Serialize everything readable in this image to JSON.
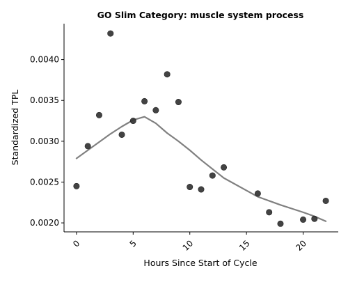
{
  "chart_data": {
    "type": "scatter",
    "title": "GO Slim Category: muscle system process",
    "xlabel": "Hours Since Start of Cycle",
    "ylabel": "Standardized TPL",
    "xlim": [
      -1.1,
      23.1
    ],
    "ylim": [
      0.00189,
      0.00444
    ],
    "x_ticks": [
      0,
      5,
      10,
      15,
      20
    ],
    "x_tick_labels": [
      "0",
      "5",
      "10",
      "15",
      "20"
    ],
    "x_tick_rotation_deg": 45,
    "y_ticks": [
      0.002,
      0.0025,
      0.003,
      0.0035,
      0.004
    ],
    "y_tick_labels": [
      "0.0020",
      "0.0025",
      "0.0030",
      "0.0035",
      "0.0040"
    ],
    "grid": false,
    "series": [
      {
        "kind": "points",
        "color": "#333333",
        "x": [
          0,
          1,
          2,
          3,
          4,
          5,
          6,
          7,
          8,
          9,
          10,
          11,
          12,
          13,
          16,
          17,
          18,
          20,
          21,
          22
        ],
        "y": [
          0.00245,
          0.00294,
          0.00332,
          0.00432,
          0.00308,
          0.00325,
          0.00349,
          0.00338,
          0.00382,
          0.00348,
          0.00244,
          0.00241,
          0.00258,
          0.00268,
          0.00236,
          0.00213,
          0.00199,
          0.00204,
          0.00205,
          0.00227
        ]
      },
      {
        "kind": "trend-line",
        "color": "#808080",
        "x": [
          0,
          1,
          2,
          3,
          4,
          5,
          6,
          7,
          8,
          9,
          10,
          11,
          12,
          13,
          16,
          17,
          18,
          20,
          21,
          22
        ],
        "y": [
          0.00279,
          0.00289,
          0.00299,
          0.00309,
          0.00318,
          0.00326,
          0.0033,
          0.00322,
          0.0031,
          0.003,
          0.00289,
          0.00277,
          0.00266,
          0.00255,
          0.00232,
          0.00227,
          0.00222,
          0.00213,
          0.00208,
          0.00202
        ]
      }
    ]
  }
}
